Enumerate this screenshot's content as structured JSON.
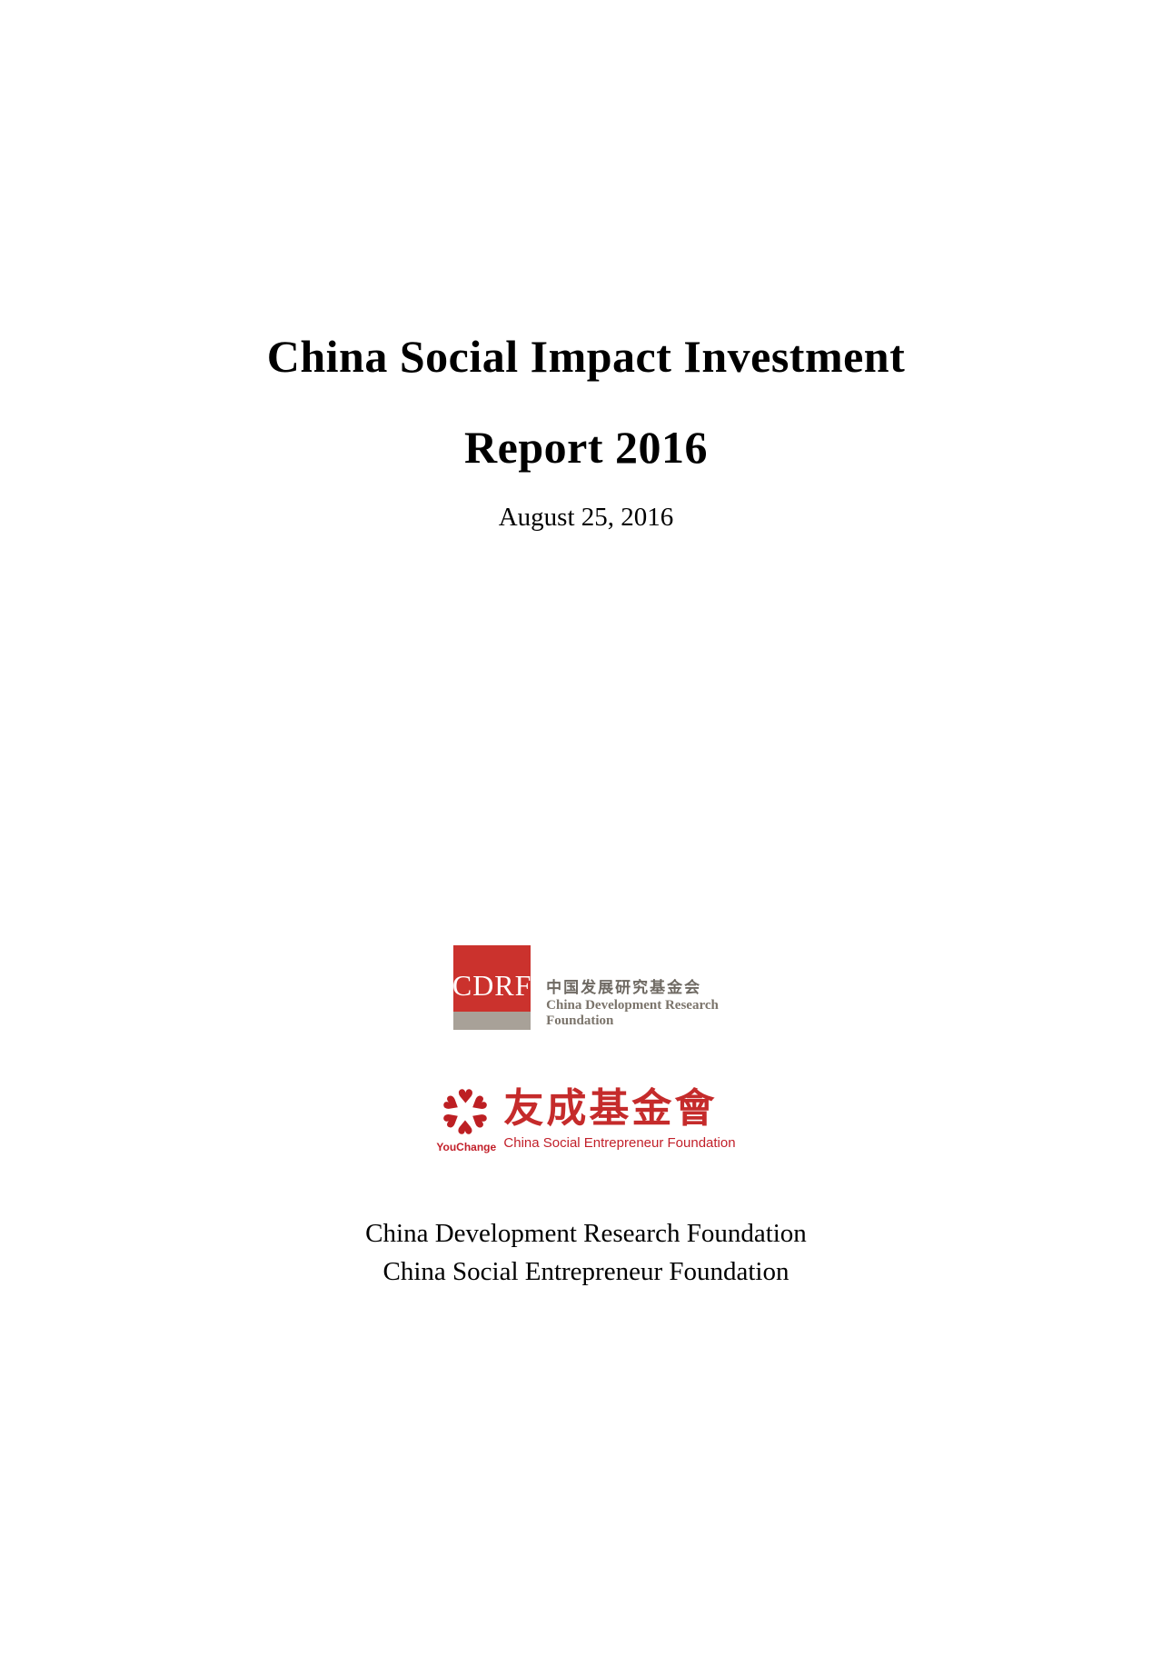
{
  "page": {
    "title_line1": "China Social Impact Investment",
    "title_line2": "Report 2016",
    "date": "August 25, 2016"
  },
  "cdrf_logo": {
    "acronym": "CDRF",
    "chinese_name": "中国发展研究基金会",
    "english_name_line1": "China Development Research",
    "english_name_line2": "Foundation",
    "brand_red": "#cb322d",
    "bar_gray": "#a8a198",
    "text_gray": "#6f6a63"
  },
  "youchange_logo": {
    "brand_name": "YouChange",
    "chinese_name": "友成基金會",
    "english_name": "China Social Entrepreneur Foundation",
    "brand_red": "#c2202a",
    "heart_icon": "♥"
  },
  "footer": {
    "line1": "China Development Research Foundation",
    "line2": "China Social Entrepreneur Foundation"
  }
}
